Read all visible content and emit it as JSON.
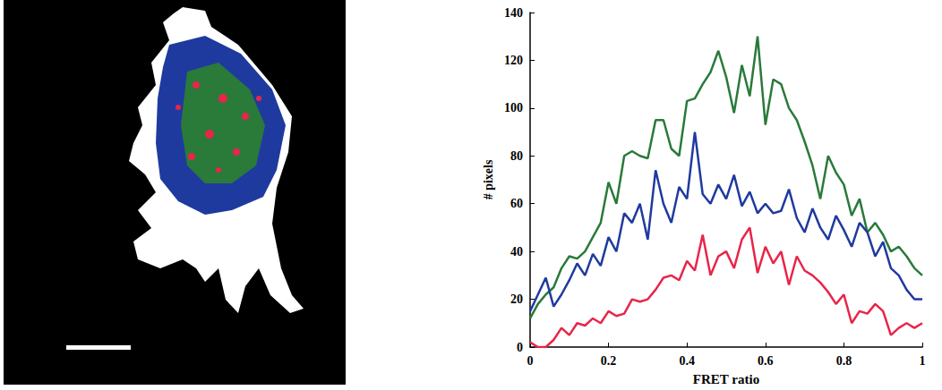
{
  "chart_data": {
    "type": "line",
    "x_label": "FRET ratio",
    "y_label": "# pixels",
    "x": [
      0,
      0.02,
      0.04,
      0.06,
      0.08,
      0.1,
      0.12,
      0.14,
      0.16,
      0.18,
      0.2,
      0.22,
      0.24,
      0.26,
      0.28,
      0.3,
      0.32,
      0.34,
      0.36,
      0.38,
      0.4,
      0.42,
      0.44,
      0.46,
      0.48,
      0.5,
      0.52,
      0.54,
      0.56,
      0.58,
      0.6,
      0.62,
      0.64,
      0.66,
      0.68,
      0.7,
      0.72,
      0.74,
      0.76,
      0.78,
      0.8,
      0.82,
      0.84,
      0.86,
      0.88,
      0.9,
      0.92,
      0.94,
      0.96,
      0.98,
      1
    ],
    "series": [
      {
        "color": "#2a7a3a",
        "values": [
          12,
          18,
          22,
          25,
          33,
          38,
          37,
          40,
          46,
          52,
          69,
          60,
          80,
          82,
          80,
          79,
          95,
          95,
          83,
          80,
          103,
          104,
          110,
          115,
          124,
          113,
          98,
          118,
          105,
          130,
          93,
          112,
          110,
          100,
          95,
          86,
          76,
          62,
          80,
          73,
          68,
          55,
          62,
          48,
          52,
          47,
          40,
          42,
          38,
          33,
          30
        ]
      },
      {
        "color": "#1f3a9e",
        "values": [
          15,
          22,
          29,
          17,
          22,
          28,
          35,
          30,
          39,
          34,
          46,
          40,
          56,
          52,
          60,
          45,
          74,
          60,
          52,
          67,
          62,
          90,
          64,
          60,
          68,
          62,
          72,
          59,
          65,
          56,
          60,
          56,
          57,
          66,
          54,
          48,
          58,
          50,
          45,
          55,
          49,
          42,
          52,
          48,
          38,
          44,
          33,
          30,
          24,
          20,
          20
        ]
      },
      {
        "color": "#e8254a",
        "values": [
          2,
          0,
          0,
          3,
          8,
          5,
          10,
          9,
          12,
          10,
          15,
          13,
          14,
          20,
          19,
          20,
          24,
          29,
          30,
          28,
          36,
          32,
          47,
          30,
          38,
          40,
          33,
          45,
          50,
          31,
          42,
          35,
          40,
          26,
          38,
          32,
          30,
          27,
          23,
          18,
          22,
          10,
          15,
          14,
          18,
          15,
          5,
          8,
          10,
          8,
          10
        ]
      }
    ],
    "xlim": [
      0,
      1
    ],
    "xticks": [
      0,
      0.2,
      0.4,
      0.6,
      0.8,
      1
    ],
    "ylim": [
      0,
      140
    ],
    "yticks": [
      0,
      20,
      40,
      60,
      80,
      100,
      120,
      140
    ],
    "grid": false
  }
}
